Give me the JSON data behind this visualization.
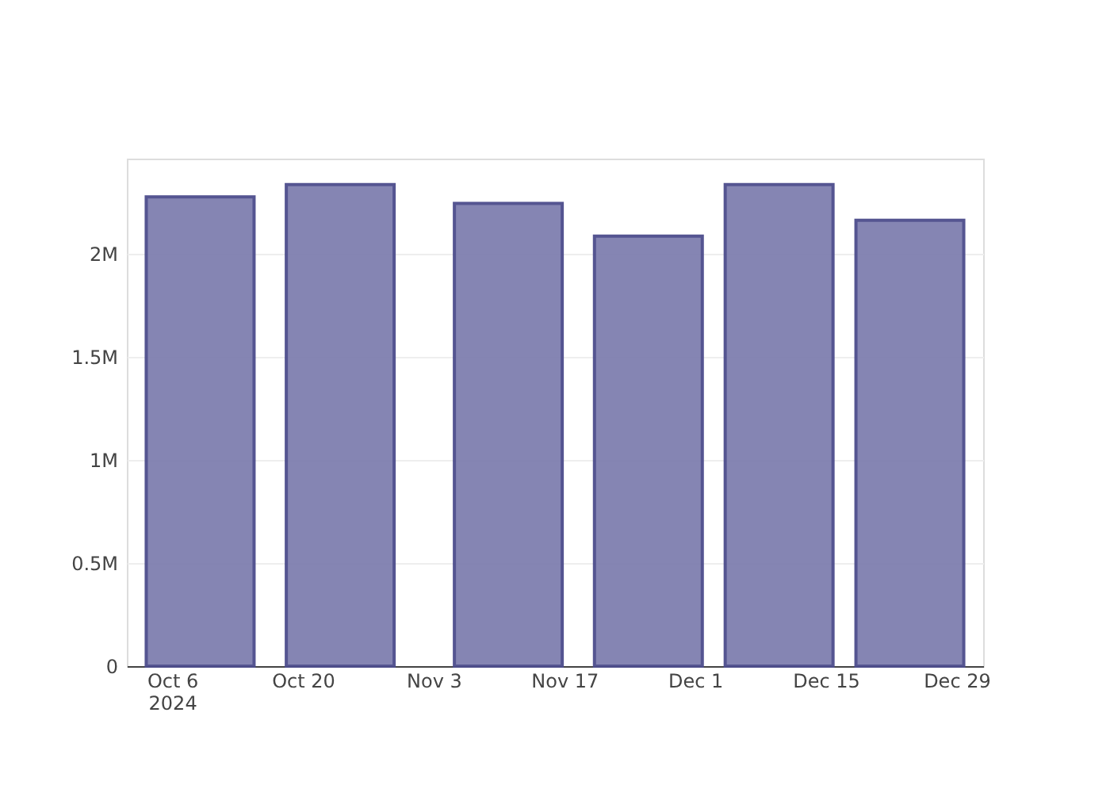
{
  "chart_data": {
    "type": "bar",
    "x": [
      "2024-10-09",
      "2024-10-24",
      "2024-11-11",
      "2024-11-26",
      "2024-12-10",
      "2024-12-24"
    ],
    "series": [
      {
        "color": "#7f7faf",
        "values": [
          2275000,
          2334000,
          2243000,
          2084000,
          2334000,
          2161000
        ]
      }
    ],
    "xlim": [
      "2024-10-02",
      "2024-12-31"
    ],
    "xticks": [
      {
        "value": "2024-10-06",
        "label": "Oct 6\n2024"
      },
      {
        "value": "2024-10-20",
        "label": "Oct 20"
      },
      {
        "value": "2024-11-03",
        "label": "Nov 3"
      },
      {
        "value": "2024-11-17",
        "label": "Nov 17"
      },
      {
        "value": "2024-12-01",
        "label": "Dec 1"
      },
      {
        "value": "2024-12-15",
        "label": "Dec 15"
      },
      {
        "value": "2024-12-29",
        "label": "Dec 29"
      }
    ],
    "ylim": [
      0,
      2460000
    ],
    "yticks": [
      {
        "value": 0,
        "label": "0"
      },
      {
        "value": 500000,
        "label": "0.5M"
      },
      {
        "value": 1000000,
        "label": "1M"
      },
      {
        "value": 1500000,
        "label": "1.5M"
      },
      {
        "value": 2000000,
        "label": "2M"
      }
    ],
    "grid": "y"
  }
}
